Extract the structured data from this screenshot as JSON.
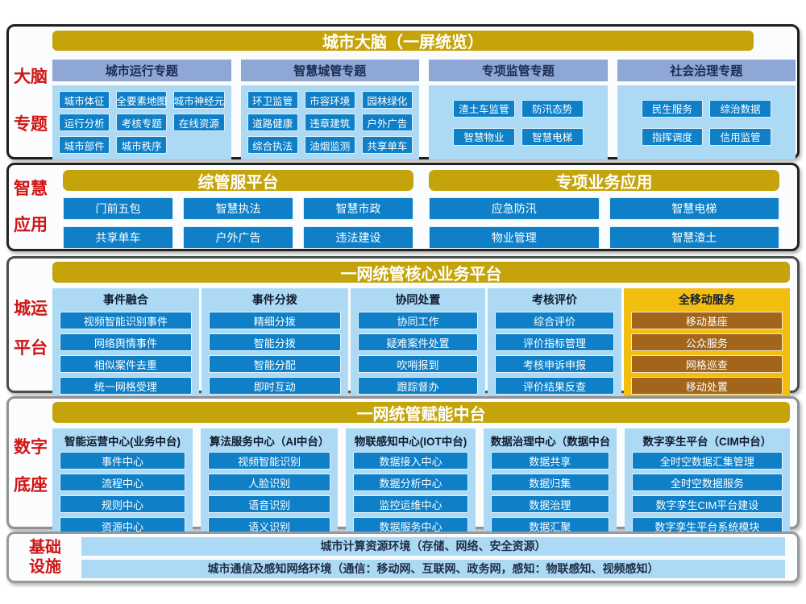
{
  "colors": {
    "gold": "#c5a40b",
    "bright_gold": "#f2be10",
    "brown": "#a2651b",
    "blue": "#0f80c8",
    "light_blue": "#acdaf4",
    "medium_blue": "#8fa7d4",
    "red_label": "#cf1515"
  },
  "brain": {
    "side": [
      "大脑",
      "专题"
    ],
    "title": "城市大脑（一屏统览）",
    "groups": [
      {
        "header": "城市运行专题",
        "rows": [
          [
            "城市体征",
            "全要素地图",
            "城市神经元"
          ],
          [
            "运行分析",
            "考核专题",
            "在线资源"
          ],
          [
            "城市部件",
            "城市秩序"
          ]
        ]
      },
      {
        "header": "智慧城管专题",
        "rows": [
          [
            "环卫监管",
            "市容环境",
            "园林绿化"
          ],
          [
            "道路健康",
            "违章建筑",
            "户外广告"
          ],
          [
            "综合执法",
            "油烟监测",
            "共享单车"
          ]
        ]
      },
      {
        "header": "专项监管专题",
        "rows": [
          [
            "渣土车监管",
            "防汛态势"
          ],
          [
            "智慧物业",
            "智慧电梯"
          ]
        ]
      },
      {
        "header": "社会治理专题",
        "rows": [
          [
            "民生服务",
            "综治数据"
          ],
          [
            "指挥调度",
            "信用监管"
          ]
        ]
      }
    ]
  },
  "apps": {
    "side": [
      "智慧",
      "应用"
    ],
    "platforms": [
      {
        "title": "综管服平台",
        "rows": [
          [
            "门前五包",
            "智慧执法",
            "智慧市政"
          ],
          [
            "共享单车",
            "户外广告",
            "违法建设"
          ]
        ]
      },
      {
        "title": "专项业务应用",
        "rows": [
          [
            "应急防汛",
            "智慧电梯"
          ],
          [
            "物业管理",
            "智慧渣土"
          ]
        ]
      }
    ]
  },
  "core": {
    "side": [
      "城运",
      "平台"
    ],
    "title": "一网统管核心业务平台",
    "dots": "......",
    "columns": [
      {
        "header": "事件融合",
        "items": [
          "视频智能识别事件",
          "网络舆情事件",
          "相似案件去重",
          "统一网格受理"
        ]
      },
      {
        "header": "事件分拨",
        "items": [
          "精细分拨",
          "智能分拨",
          "智能分配",
          "即时互动"
        ]
      },
      {
        "header": "协同处置",
        "items": [
          "协同工作",
          "疑难案件处置",
          "吹哨报到",
          "跟踪督办"
        ]
      },
      {
        "header": "考核评价",
        "items": [
          "综合评价",
          "评价指标管理",
          "考核申诉申报",
          "评价结果反查"
        ]
      },
      {
        "header": "全移动服务",
        "items": [
          "移动基座",
          "公众服务",
          "网格巡查",
          "移动处置"
        ]
      }
    ]
  },
  "enable": {
    "side": [
      "数字",
      "底座"
    ],
    "title": "一网统管赋能中台",
    "columns": [
      {
        "header": "智能运营中心(业务中台)",
        "items": [
          "事件中心",
          "流程中心",
          "规则中心",
          "资源中心"
        ]
      },
      {
        "header": "算法服务中心（AI中台）",
        "items": [
          "视频智能识别",
          "人脸识别",
          "语音识别",
          "语义识别"
        ]
      },
      {
        "header": "物联感知中心(IOT中台)",
        "items": [
          "数据接入中心",
          "数据分析中心",
          "监控运维中心",
          "数据服务中心"
        ]
      },
      {
        "header": "数据治理中心（数据中台）",
        "items": [
          "数据共享",
          "数据归集",
          "数据治理",
          "数据汇聚"
        ]
      },
      {
        "header": "数字孪生平台（CIM中台）",
        "items": [
          "全时空数据汇集管理",
          "全时空数据服务",
          "数字孪生CIM平台建设",
          "数字孪生平台系统模块"
        ]
      }
    ]
  },
  "infra": {
    "side": [
      "基础",
      "设施"
    ],
    "bars": [
      "城市计算资源环境（存储、网络、安全资源）",
      "城市通信及感知网络环境（通信：移动网、互联网、政务网，感知：物联感知、视频感知）"
    ]
  }
}
